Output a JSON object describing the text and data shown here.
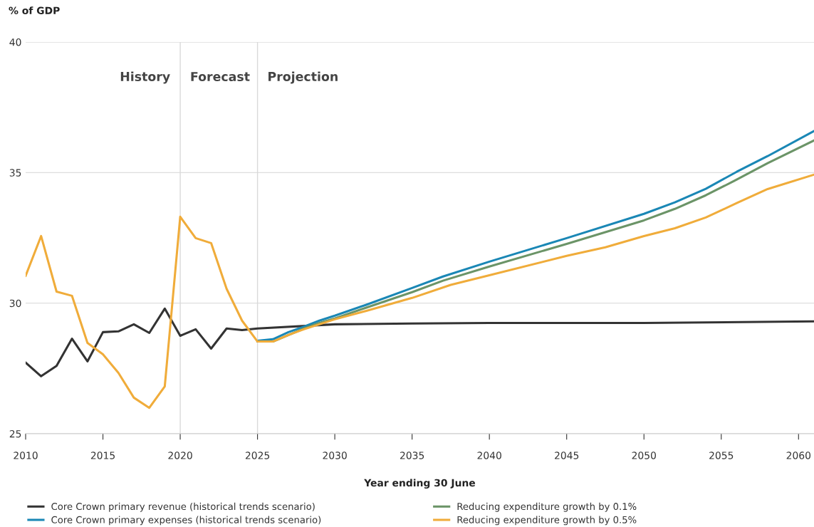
{
  "chart_data": {
    "type": "line",
    "ylabel": "% of GDP",
    "xlabel": "Year ending 30 June",
    "xlim": [
      2010,
      2061
    ],
    "xticks": [
      2010,
      2015,
      2020,
      2025,
      2030,
      2035,
      2040,
      2045,
      2050,
      2055,
      2060
    ],
    "ylim": [
      25,
      40
    ],
    "yticks": [
      25,
      30,
      35,
      40
    ],
    "grid": "y",
    "legend": "bottom",
    "marker": "none",
    "line_style": "solid",
    "ref_lines": [
      {
        "axis": "x",
        "value": 2020,
        "color": "#d9d9d9"
      },
      {
        "axis": "x",
        "value": 2025,
        "color": "#d9d9d9"
      }
    ],
    "annotations": [
      "History",
      "Forecast",
      "Projection"
    ],
    "series": [
      {
        "name": "Core Crown primary revenue (historical trends scenario)",
        "color": "#333333",
        "x": [
          2010,
          2011,
          2012,
          2013,
          2014,
          2015,
          2016,
          2017,
          2018,
          2019,
          2020,
          2021,
          2022,
          2023,
          2024,
          2025,
          2030,
          2035,
          2040,
          2050,
          2061
        ],
        "values": [
          27.72,
          27.2,
          27.6,
          28.64,
          27.77,
          28.89,
          28.92,
          29.19,
          28.86,
          29.79,
          28.75,
          29.0,
          28.26,
          29.03,
          28.97,
          29.03,
          29.19,
          29.22,
          29.24,
          29.24,
          29.3
        ]
      },
      {
        "name": "Core Crown primary expenses (historical trends scenario)",
        "color": "#1a87b5",
        "x": [
          2025,
          2026,
          2027,
          2028,
          2029,
          2030,
          2032,
          2035,
          2037,
          2040,
          2045,
          2050,
          2052,
          2054,
          2056,
          2058,
          2061
        ],
        "values": [
          28.56,
          28.62,
          28.89,
          29.1,
          29.33,
          29.52,
          29.93,
          30.58,
          31.02,
          31.59,
          32.49,
          33.42,
          33.86,
          34.38,
          35.03,
          35.63,
          36.59
        ]
      },
      {
        "name": "Reducing expenditure growth by 0.1%",
        "color": "#6b9467",
        "x": [
          2025,
          2026,
          2027,
          2028,
          2029,
          2030,
          2032,
          2035,
          2037,
          2040,
          2045,
          2050,
          2052,
          2054,
          2056,
          2058,
          2061
        ],
        "values": [
          28.53,
          28.53,
          null,
          29.03,
          29.24,
          29.41,
          29.82,
          30.42,
          30.86,
          31.4,
          32.27,
          33.17,
          33.61,
          34.13,
          34.73,
          35.36,
          36.23
        ]
      },
      {
        "name": "Reducing expenditure growth by 0.5%",
        "color": "#f0ac3a",
        "x": [
          2010,
          2011,
          2012,
          2013,
          2014,
          2015,
          2016,
          2017,
          2018,
          2019,
          2020,
          2021,
          2022,
          2023,
          2024,
          2025,
          2026,
          2027,
          2028,
          2029,
          2030,
          2032,
          2035,
          2037.5,
          2040,
          2045,
          2047.5,
          2050,
          2052,
          2054,
          2056,
          2058,
          2061
        ],
        "values": [
          31.05,
          32.57,
          30.44,
          30.28,
          28.48,
          28.04,
          27.33,
          26.38,
          25.99,
          26.81,
          33.31,
          32.49,
          32.3,
          30.55,
          29.33,
          28.53,
          28.53,
          28.78,
          29.0,
          29.19,
          29.38,
          29.7,
          30.2,
          30.7,
          31.07,
          31.81,
          32.14,
          32.57,
          32.87,
          33.28,
          33.83,
          34.37,
          34.92
        ]
      }
    ]
  }
}
